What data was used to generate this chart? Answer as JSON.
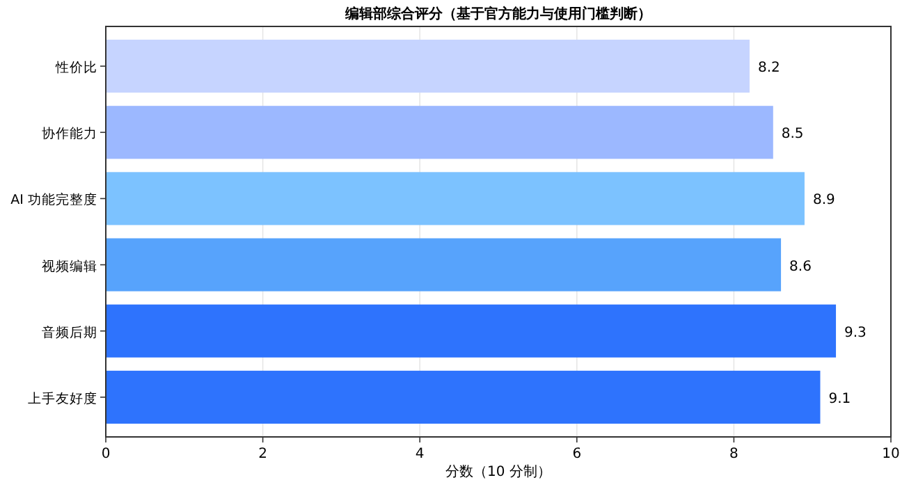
{
  "chart_data": {
    "type": "bar",
    "orientation": "horizontal",
    "title": "编辑部综合评分（基于官方能力与使用门槛判断）",
    "xlabel": "分数（10 分制）",
    "categories": [
      "性价比",
      "协作能力",
      "AI 功能完整度",
      "视频编辑",
      "音频后期",
      "上手友好度"
    ],
    "values": [
      8.2,
      8.5,
      8.9,
      8.6,
      9.3,
      9.1
    ],
    "colors": [
      "#c6d4ff",
      "#9cb8ff",
      "#7cc2ff",
      "#57a3fc",
      "#2e73fd",
      "#2e73fd"
    ],
    "xlim": [
      0,
      10
    ],
    "xticks": [
      0,
      2,
      4,
      6,
      8,
      10
    ],
    "grid": "x",
    "data_labels": true
  }
}
